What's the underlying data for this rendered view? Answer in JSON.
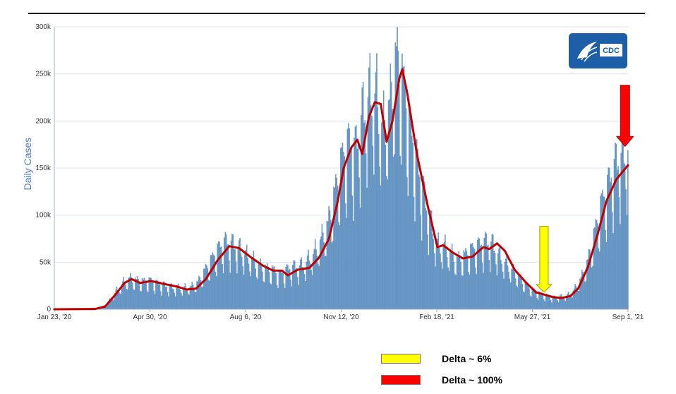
{
  "colors": {
    "bars": "#6b9bc9",
    "bar_stroke": "#4f82b5",
    "moving_average": "#c00000",
    "grid": "#dbe6f1",
    "axis": "#9bb3cc",
    "yellow_arrow": "#ffff00",
    "red_arrow": "#ff0000",
    "cdc_badge": "#1c5fa8"
  },
  "logo": {
    "text": "CDC",
    "icon": "cdc-eagle-logo"
  },
  "legend": [
    {
      "label": "Delta ~ 6%",
      "color": "#ffff00"
    },
    {
      "label": "Delta ~ 100%",
      "color": "#ff0000"
    }
  ],
  "chart_data": {
    "type": "bar",
    "ylabel": "Daily Cases",
    "xlabel": "",
    "ylim": [
      0,
      300000
    ],
    "yticks": [
      "0",
      "50k",
      "100k",
      "150k",
      "200k",
      "250k",
      "300k"
    ],
    "xticks": [
      "Jan 23, '20",
      "Apr 30, '20",
      "Aug 6, '20",
      "Nov 12, '20",
      "Feb 18, '21",
      "May 27, '21",
      "Sep 1, '21"
    ],
    "x_range": [
      "2020-01-23",
      "2021-09-01"
    ],
    "grid": true,
    "series": [
      {
        "type": "bar",
        "weekly_points": [
          [
            "2020-01-23",
            0
          ],
          [
            "2020-02-20",
            0
          ],
          [
            "2020-03-05",
            300
          ],
          [
            "2020-03-12",
            1500
          ],
          [
            "2020-03-19",
            8000
          ],
          [
            "2020-03-26",
            18000
          ],
          [
            "2020-04-02",
            27000
          ],
          [
            "2020-04-09",
            32000
          ],
          [
            "2020-04-16",
            30000
          ],
          [
            "2020-04-23",
            29000
          ],
          [
            "2020-04-30",
            30000
          ],
          [
            "2020-05-07",
            27000
          ],
          [
            "2020-05-14",
            25000
          ],
          [
            "2020-05-21",
            23000
          ],
          [
            "2020-05-28",
            22000
          ],
          [
            "2020-06-04",
            22000
          ],
          [
            "2020-06-11",
            23000
          ],
          [
            "2020-06-18",
            28000
          ],
          [
            "2020-06-25",
            40000
          ],
          [
            "2020-07-02",
            52000
          ],
          [
            "2020-07-09",
            63000
          ],
          [
            "2020-07-16",
            70000
          ],
          [
            "2020-07-23",
            68000
          ],
          [
            "2020-07-30",
            63000
          ],
          [
            "2020-08-06",
            56000
          ],
          [
            "2020-08-13",
            51000
          ],
          [
            "2020-08-20",
            45000
          ],
          [
            "2020-08-27",
            42000
          ],
          [
            "2020-09-03",
            41000
          ],
          [
            "2020-09-10",
            36000
          ],
          [
            "2020-09-17",
            41000
          ],
          [
            "2020-09-24",
            44000
          ],
          [
            "2020-10-01",
            45000
          ],
          [
            "2020-10-08",
            50000
          ],
          [
            "2020-10-15",
            58000
          ],
          [
            "2020-10-22",
            72000
          ],
          [
            "2020-10-29",
            88000
          ],
          [
            "2020-11-05",
            120000
          ],
          [
            "2020-11-12",
            155000
          ],
          [
            "2020-11-19",
            172000
          ],
          [
            "2020-11-26",
            165000
          ],
          [
            "2020-12-03",
            200000
          ],
          [
            "2020-12-10",
            222000
          ],
          [
            "2020-12-17",
            225000
          ],
          [
            "2020-12-24",
            185000
          ],
          [
            "2020-12-31",
            210000
          ],
          [
            "2021-01-07",
            262000
          ],
          [
            "2021-01-14",
            235000
          ],
          [
            "2021-01-21",
            190000
          ],
          [
            "2021-01-28",
            155000
          ],
          [
            "2021-02-04",
            120000
          ],
          [
            "2021-02-11",
            90000
          ],
          [
            "2021-02-18",
            66000
          ],
          [
            "2021-02-25",
            65000
          ],
          [
            "2021-03-04",
            58000
          ],
          [
            "2021-03-11",
            52000
          ],
          [
            "2021-03-18",
            56000
          ],
          [
            "2021-03-25",
            62000
          ],
          [
            "2021-04-01",
            66000
          ],
          [
            "2021-04-08",
            70000
          ],
          [
            "2021-04-15",
            68000
          ],
          [
            "2021-04-22",
            56000
          ],
          [
            "2021-04-29",
            48000
          ],
          [
            "2021-05-06",
            40000
          ],
          [
            "2021-05-13",
            32000
          ],
          [
            "2021-05-20",
            25000
          ],
          [
            "2021-05-27",
            20000
          ],
          [
            "2021-06-03",
            16000
          ],
          [
            "2021-06-10",
            14000
          ],
          [
            "2021-06-17",
            12000
          ],
          [
            "2021-06-24",
            13000
          ],
          [
            "2021-07-01",
            14000
          ],
          [
            "2021-07-08",
            20000
          ],
          [
            "2021-07-15",
            32000
          ],
          [
            "2021-07-22",
            50000
          ],
          [
            "2021-07-29",
            80000
          ],
          [
            "2021-08-05",
            110000
          ],
          [
            "2021-08-12",
            130000
          ],
          [
            "2021-08-19",
            150000
          ],
          [
            "2021-08-26",
            160000
          ],
          [
            "2021-09-01",
            165000
          ]
        ]
      },
      {
        "type": "line",
        "points": [
          [
            "2020-01-23",
            0
          ],
          [
            "2020-03-05",
            300
          ],
          [
            "2020-03-15",
            3000
          ],
          [
            "2020-03-25",
            15000
          ],
          [
            "2020-04-04",
            28000
          ],
          [
            "2020-04-11",
            32000
          ],
          [
            "2020-04-20",
            28000
          ],
          [
            "2020-05-01",
            30000
          ],
          [
            "2020-05-14",
            27000
          ],
          [
            "2020-05-28",
            24000
          ],
          [
            "2020-06-06",
            21000
          ],
          [
            "2020-06-16",
            22000
          ],
          [
            "2020-06-26",
            32000
          ],
          [
            "2020-07-08",
            52000
          ],
          [
            "2020-07-20",
            67000
          ],
          [
            "2020-07-30",
            65000
          ],
          [
            "2020-08-10",
            56000
          ],
          [
            "2020-08-24",
            46000
          ],
          [
            "2020-09-03",
            41000
          ],
          [
            "2020-09-12",
            41000
          ],
          [
            "2020-09-18",
            36000
          ],
          [
            "2020-09-28",
            42000
          ],
          [
            "2020-10-10",
            44000
          ],
          [
            "2020-10-20",
            55000
          ],
          [
            "2020-10-30",
            75000
          ],
          [
            "2020-11-08",
            115000
          ],
          [
            "2020-11-14",
            150000
          ],
          [
            "2020-11-22",
            172000
          ],
          [
            "2020-11-28",
            180000
          ],
          [
            "2020-12-03",
            165000
          ],
          [
            "2020-12-10",
            205000
          ],
          [
            "2020-12-16",
            220000
          ],
          [
            "2020-12-22",
            218000
          ],
          [
            "2020-12-28",
            178000
          ],
          [
            "2021-01-03",
            200000
          ],
          [
            "2021-01-10",
            245000
          ],
          [
            "2021-01-13",
            255000
          ],
          [
            "2021-01-18",
            230000
          ],
          [
            "2021-01-28",
            165000
          ],
          [
            "2021-02-08",
            110000
          ],
          [
            "2021-02-18",
            66000
          ],
          [
            "2021-02-24",
            68000
          ],
          [
            "2021-03-06",
            60000
          ],
          [
            "2021-03-16",
            54000
          ],
          [
            "2021-03-26",
            56000
          ],
          [
            "2021-04-06",
            66000
          ],
          [
            "2021-04-12",
            64000
          ],
          [
            "2021-04-20",
            70000
          ],
          [
            "2021-04-28",
            62000
          ],
          [
            "2021-05-08",
            42000
          ],
          [
            "2021-05-20",
            28000
          ],
          [
            "2021-05-30",
            18000
          ],
          [
            "2021-06-06",
            16000
          ],
          [
            "2021-06-16",
            13000
          ],
          [
            "2021-06-25",
            12000
          ],
          [
            "2021-07-04",
            14000
          ],
          [
            "2021-07-12",
            22000
          ],
          [
            "2021-07-22",
            45000
          ],
          [
            "2021-08-01",
            80000
          ],
          [
            "2021-08-10",
            115000
          ],
          [
            "2021-08-20",
            138000
          ],
          [
            "2021-08-28",
            148000
          ],
          [
            "2021-09-01",
            153000
          ]
        ]
      }
    ],
    "annotations": [
      {
        "type": "arrow",
        "color": "#ffff00",
        "x": "2021-06-07",
        "from_y": 88000,
        "to_y": 18000
      },
      {
        "type": "arrow",
        "color": "#ff0000",
        "x": "2021-08-29",
        "from_y": 238000,
        "to_y": 173000
      }
    ]
  }
}
